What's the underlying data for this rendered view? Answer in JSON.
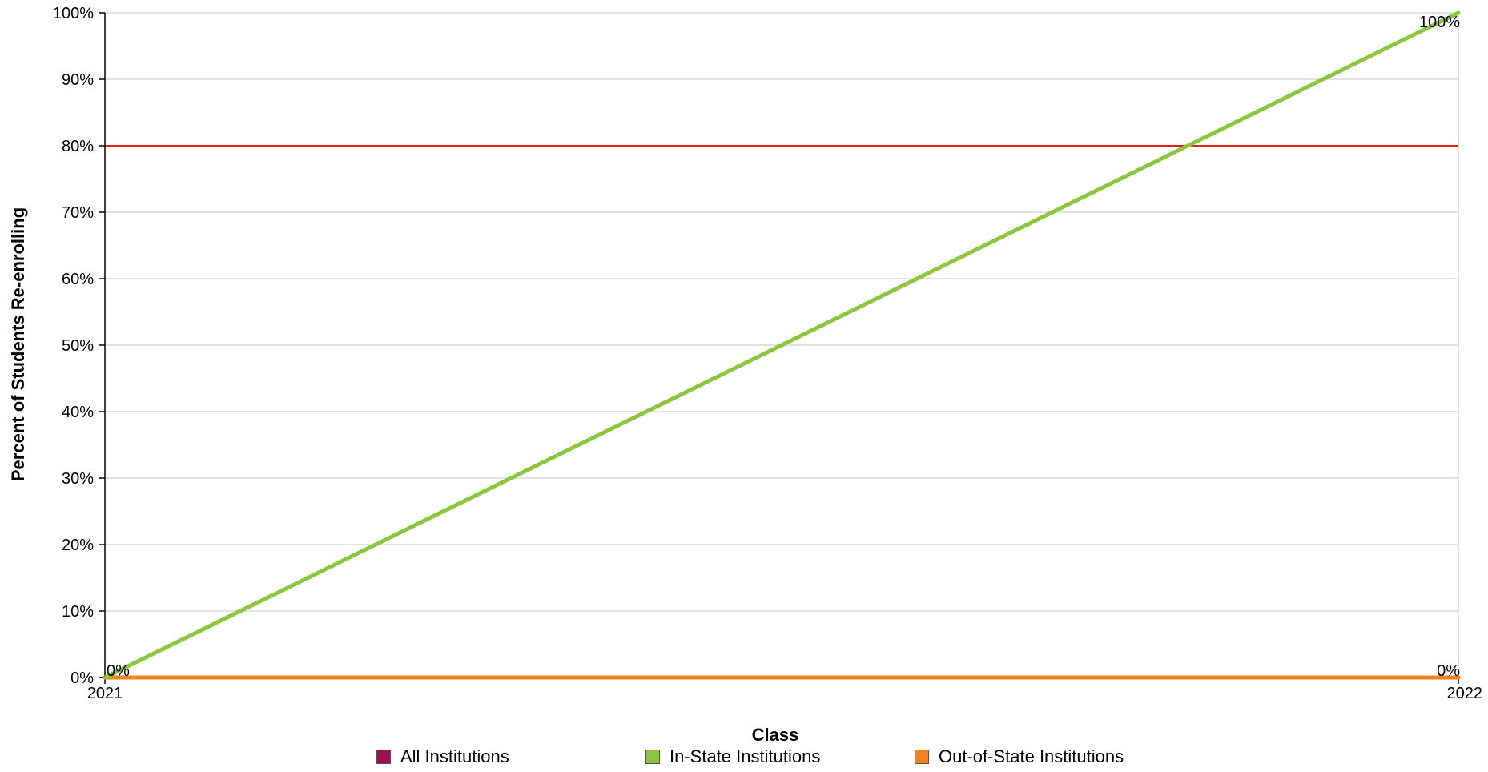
{
  "chart_data": {
    "type": "line",
    "title": "",
    "xlabel": "Class",
    "ylabel": "Percent of Students Re-enrolling",
    "categories": [
      "2021",
      "2022"
    ],
    "ylim": [
      0,
      100
    ],
    "y_ticks": [
      "0%",
      "10%",
      "20%",
      "30%",
      "40%",
      "50%",
      "60%",
      "70%",
      "80%",
      "90%",
      "100%"
    ],
    "reference_line": {
      "value": 80,
      "color": "#e0201b"
    },
    "grid": true,
    "legend_position": "bottom",
    "series": [
      {
        "name": "All Institutions",
        "color": "#9b0f57",
        "values": [
          0,
          0
        ]
      },
      {
        "name": "In-State Institutions",
        "color": "#8cc63f",
        "values": [
          0,
          100
        ]
      },
      {
        "name": "Out-of-State Institutions",
        "color": "#f58220",
        "values": [
          0,
          0
        ]
      }
    ],
    "data_labels": [
      {
        "category": "2021",
        "value": 0,
        "text": "0%"
      },
      {
        "category": "2022",
        "value": 100,
        "text": "100%"
      },
      {
        "category": "2022",
        "value": 0,
        "text": "0%"
      }
    ]
  }
}
